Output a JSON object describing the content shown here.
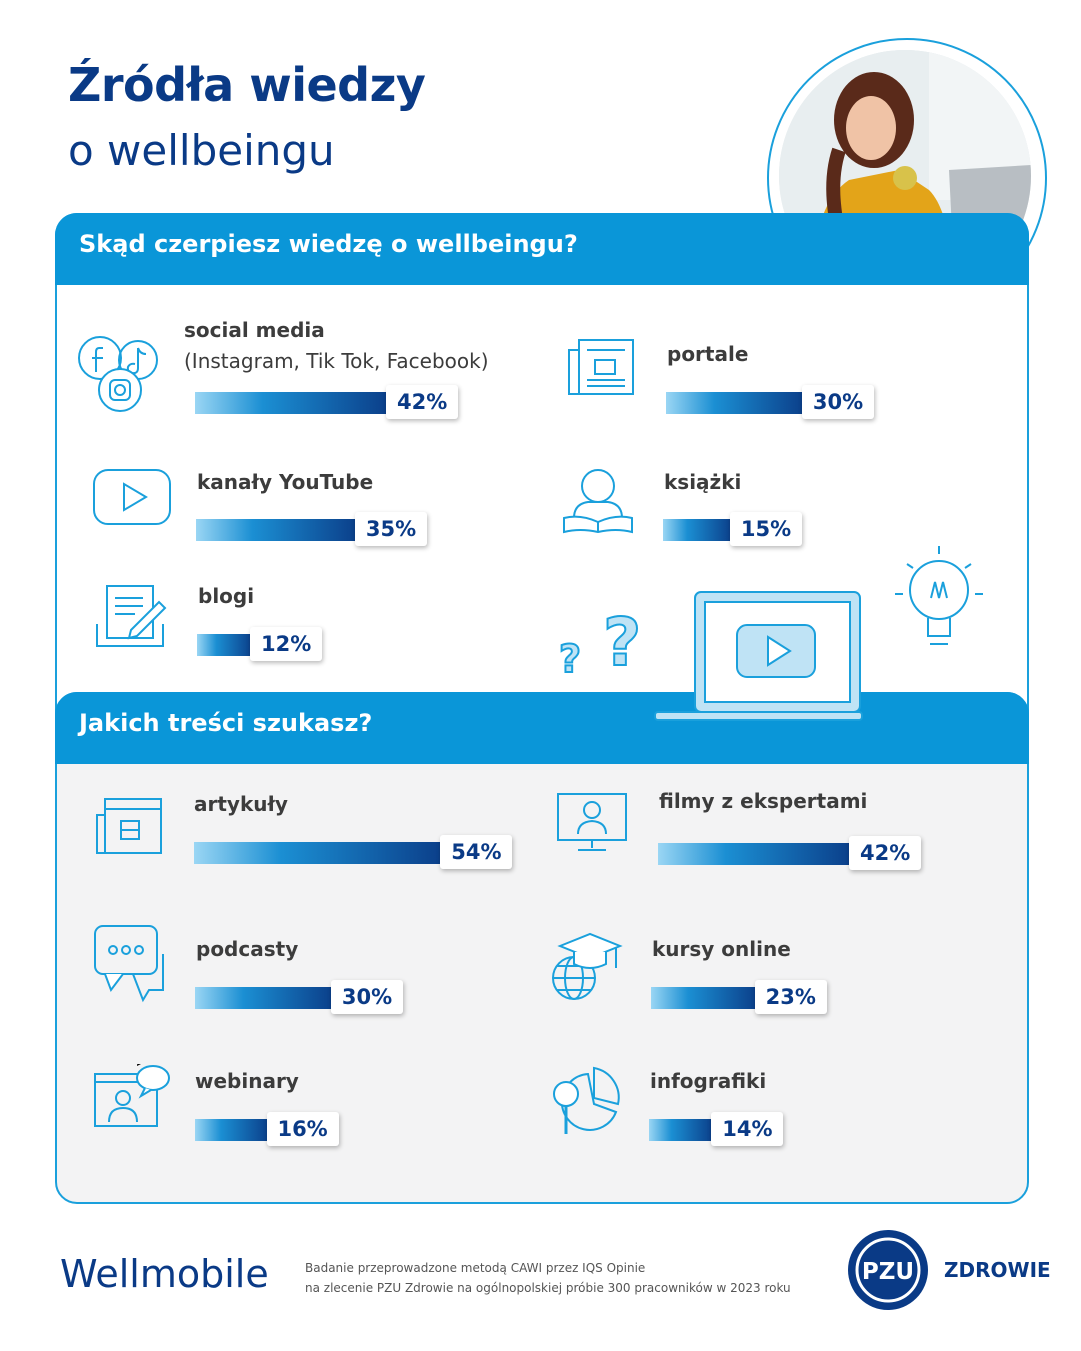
{
  "title": {
    "line1": "Źródła wiedzy",
    "line2": "o wellbeingu"
  },
  "chart_data": [
    {
      "type": "bar",
      "title": "Skąd czerpiesz wiedzę o wellbeingu?",
      "categories": [
        "social media (Instagram, Tik Tok, Facebook)",
        "portale",
        "kanały YouTube",
        "książki",
        "blogi"
      ],
      "values": [
        42,
        30,
        35,
        15,
        12
      ],
      "unit": "%"
    },
    {
      "type": "bar",
      "title": "Jakich treści szukasz?",
      "categories": [
        "artykuły",
        "filmy z ekspertami",
        "podcasty",
        "kursy online",
        "webinary",
        "infografiki"
      ],
      "values": [
        54,
        42,
        30,
        23,
        16,
        14
      ],
      "unit": "%"
    }
  ],
  "items1": [
    {
      "label": "social media",
      "sublabel": "(Instagram, Tik Tok, Facebook)",
      "value": 42,
      "pct": "42%",
      "icon": "social-media-icon"
    },
    {
      "label": "portale",
      "value": 30,
      "pct": "30%",
      "icon": "newspaper-icon"
    },
    {
      "label": "kanały YouTube",
      "value": 35,
      "pct": "35%",
      "icon": "youtube-icon"
    },
    {
      "label": "książki",
      "value": 15,
      "pct": "15%",
      "icon": "reader-book-icon"
    },
    {
      "label": "blogi",
      "value": 12,
      "pct": "12%",
      "icon": "blog-edit-icon"
    }
  ],
  "items2": [
    {
      "label": "artykuły",
      "value": 54,
      "pct": "54%",
      "icon": "article-icon"
    },
    {
      "label": "filmy z ekspertami",
      "value": 42,
      "pct": "42%",
      "icon": "expert-video-icon"
    },
    {
      "label": "podcasty",
      "value": 30,
      "pct": "30%",
      "icon": "chat-bubble-icon"
    },
    {
      "label": "kursy online",
      "value": 23,
      "pct": "23%",
      "icon": "globe-graduation-icon"
    },
    {
      "label": "webinary",
      "value": 16,
      "pct": "16%",
      "icon": "webinar-icon"
    },
    {
      "label": "infografiki",
      "value": 14,
      "pct": "14%",
      "icon": "infographic-icon"
    }
  ],
  "footer": {
    "brand": "Wellmobile",
    "note_line1": "Badanie przeprowadzone metodą CAWI przez IQS Opinie",
    "note_line2": "na zlecenie PZU Zdrowie na ogólnopolskiej próbie 300 pracowników w 2023 roku",
    "logo_text": "PZU",
    "logo_name": "ZDROWIE"
  },
  "colors": {
    "accent": "#1aa0dc",
    "header": "#0a96d8",
    "navy": "#0a3a86"
  }
}
